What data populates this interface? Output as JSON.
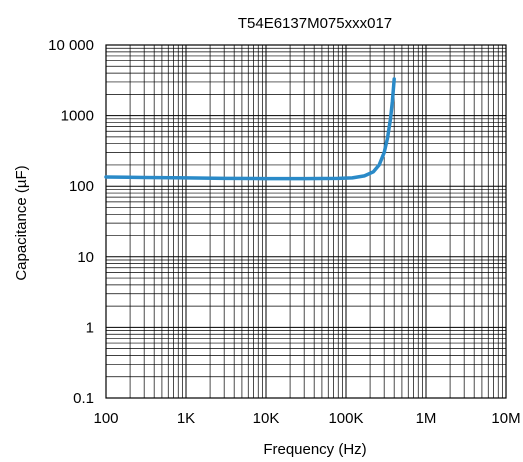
{
  "chart_data": {
    "type": "line",
    "title": "T54E6137M075xxx017",
    "xlabel": "Frequency (Hz)",
    "ylabel": "Capacitance (µF)",
    "x_scale": "log",
    "y_scale": "log",
    "xlim": [
      100,
      10000000
    ],
    "ylim": [
      0.1,
      10000
    ],
    "grid": true,
    "x_ticks": [
      {
        "value": 100,
        "label": "100"
      },
      {
        "value": 1000,
        "label": "1K"
      },
      {
        "value": 10000,
        "label": "10K"
      },
      {
        "value": 100000,
        "label": "100K"
      },
      {
        "value": 1000000,
        "label": "1M"
      },
      {
        "value": 10000000,
        "label": "10M"
      }
    ],
    "y_ticks": [
      {
        "value": 0.1,
        "label": "0.1"
      },
      {
        "value": 1,
        "label": "1"
      },
      {
        "value": 10,
        "label": "10"
      },
      {
        "value": 100,
        "label": "100"
      },
      {
        "value": 1000,
        "label": "1000"
      },
      {
        "value": 10000,
        "label": "10 000"
      }
    ],
    "series": [
      {
        "color": "#2a8ac8",
        "points": [
          [
            100,
            135
          ],
          [
            300,
            133
          ],
          [
            1000,
            131
          ],
          [
            3000,
            129
          ],
          [
            10000,
            128
          ],
          [
            30000,
            128
          ],
          [
            80000,
            129
          ],
          [
            120000,
            131
          ],
          [
            170000,
            140
          ],
          [
            220000,
            160
          ],
          [
            260000,
            200
          ],
          [
            300000,
            300
          ],
          [
            330000,
            480
          ],
          [
            360000,
            900
          ],
          [
            380000,
            1600
          ],
          [
            400000,
            3300
          ]
        ]
      }
    ]
  }
}
